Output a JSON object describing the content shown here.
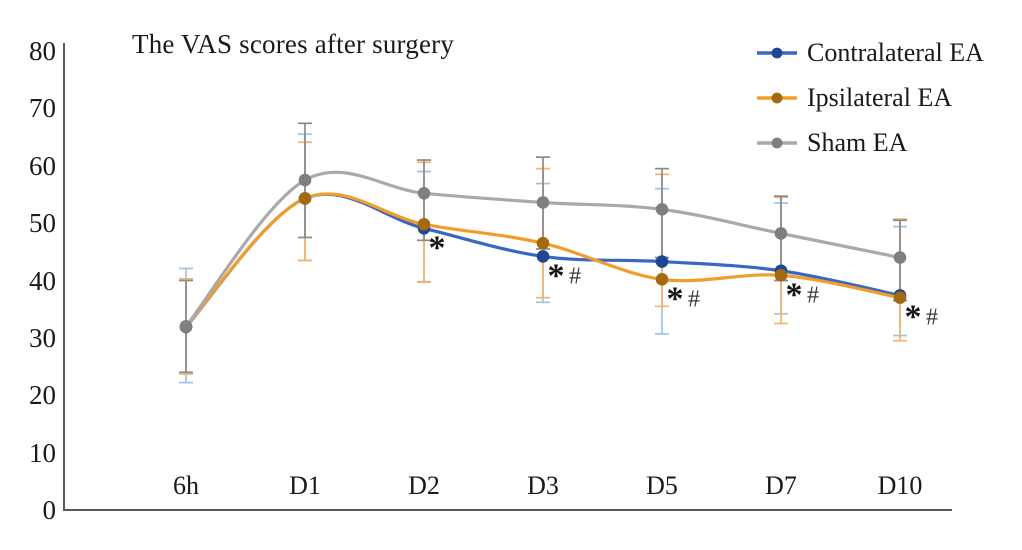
{
  "chart_data": {
    "type": "line",
    "title": "The VAS scores after surgery",
    "categories": [
      "6h",
      "D1",
      "D2",
      "D3",
      "D5",
      "D7",
      "D10"
    ],
    "xlabel": "",
    "ylabel": "",
    "ylim": [
      0,
      80
    ],
    "yticks": [
      0,
      10,
      20,
      30,
      40,
      50,
      60,
      70,
      80
    ],
    "grid": false,
    "legend_position": "top-right",
    "smoothed_lines": true,
    "error_bars": true,
    "axis_color": "#595959",
    "text_color": "#1a1a1a",
    "series": [
      {
        "name": "Contralateral EA",
        "line_color": "#3A67C2",
        "marker_color": "#1F4693",
        "error_color": "#9DC3E6",
        "values": [
          31.9,
          54.3,
          49.1,
          44.2,
          43.3,
          41.7,
          37.4
        ],
        "error_low": [
          22.2,
          43.5,
          39.8,
          36.2,
          30.7,
          34.2,
          30.4
        ],
        "error_high": [
          42.1,
          65.5,
          59.0,
          56.9,
          56.0,
          53.5,
          49.4
        ]
      },
      {
        "name": "Ipsilateral EA",
        "line_color": "#F09E2A",
        "marker_color": "#A36A12",
        "error_color": "#F4B469",
        "values": [
          32.0,
          54.3,
          49.8,
          46.5,
          40.2,
          40.9,
          37.0
        ],
        "error_low": [
          23.7,
          43.5,
          39.7,
          37.0,
          35.5,
          32.5,
          29.5
        ],
        "error_high": [
          40.3,
          64.1,
          60.6,
          59.5,
          58.5,
          54.5,
          50.7
        ]
      },
      {
        "name": "Sham EA",
        "line_color": "#A9A9A9",
        "marker_color": "#7F7F7F",
        "error_color": "#8A8A8A",
        "values": [
          32.0,
          57.5,
          55.2,
          53.6,
          52.4,
          48.2,
          44.0
        ],
        "error_low": [
          24.0,
          47.5,
          47.0,
          45.5,
          44.0,
          40.0,
          36.5
        ],
        "error_high": [
          40.0,
          67.4,
          61.0,
          61.5,
          59.5,
          54.7,
          50.5
        ]
      }
    ],
    "annotations": [
      {
        "category": "D2",
        "symbols": "*"
      },
      {
        "category": "D3",
        "symbols": "* #"
      },
      {
        "category": "D5",
        "symbols": "* #"
      },
      {
        "category": "D7",
        "symbols": "* #"
      },
      {
        "category": "D10",
        "symbols": "* #"
      }
    ]
  }
}
